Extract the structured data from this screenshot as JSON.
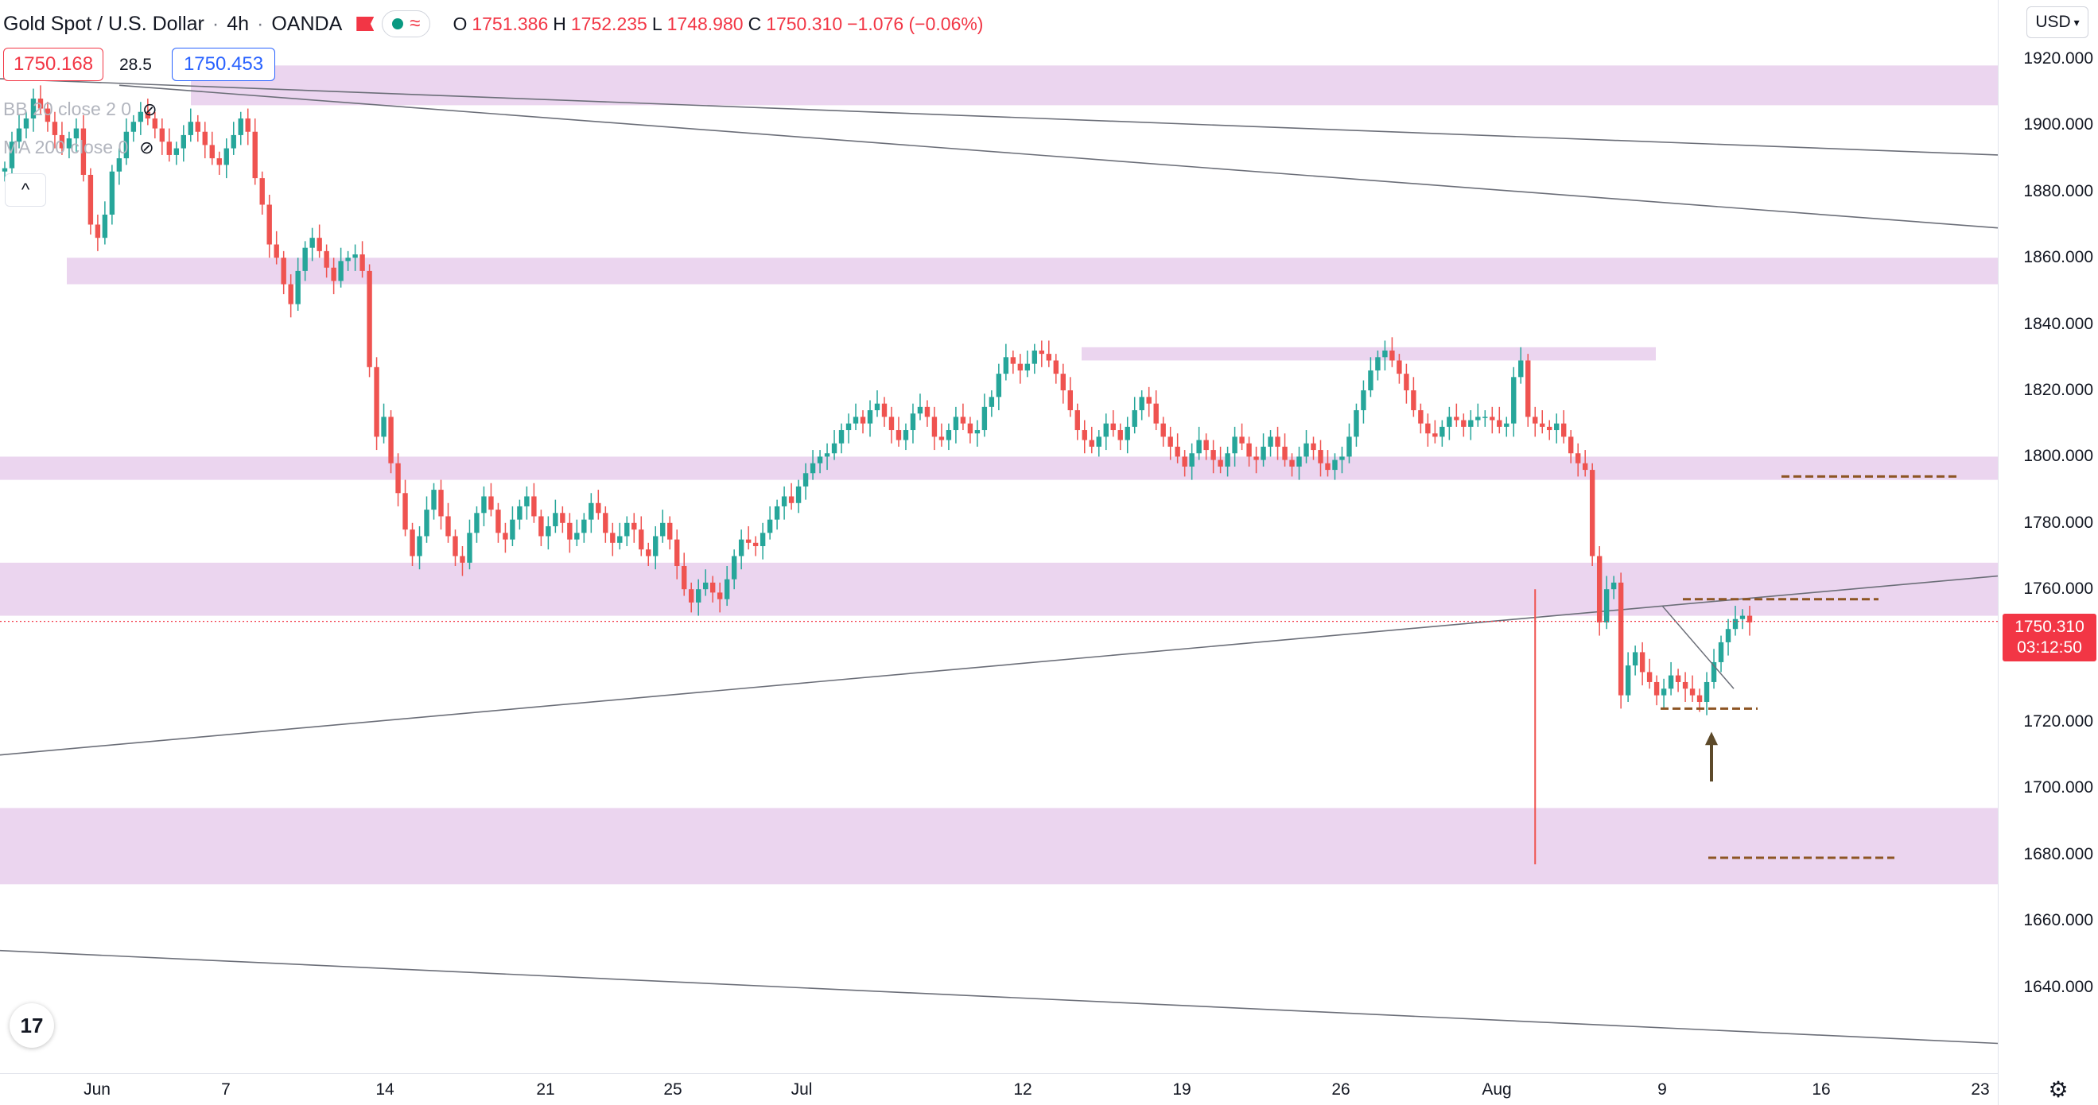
{
  "header": {
    "symbol": "Gold Spot / U.S. Dollar",
    "interval": "4h",
    "broker": "OANDA",
    "ohlc": [
      {
        "k": "O",
        "v": "1751.386"
      },
      {
        "k": "H",
        "v": "1752.235"
      },
      {
        "k": "L",
        "v": "1748.980"
      },
      {
        "k": "C",
        "v": "1750.310"
      }
    ],
    "change": "−1.076 (−0.06%)",
    "icons": [
      "flag-icon",
      "market-status-dot-icon",
      "waves-icon"
    ]
  },
  "trade": {
    "sell_price": "1750.168",
    "spread": "28.5",
    "buy_price": "1750.453"
  },
  "indicators": [
    {
      "label": "BB 20 close 2 0",
      "icon": "eye-hidden-icon"
    },
    {
      "label": "MA 200 close 0",
      "icon": "eye-hidden-icon"
    }
  ],
  "collapse_icon": "chevron-up-icon",
  "currency_button": "USD",
  "price_axis": {
    "labels": [
      "1920.000",
      "1900.000",
      "1880.000",
      "1860.000",
      "1840.000",
      "1820.000",
      "1800.000",
      "1780.000",
      "1760.000",
      "1740.000",
      "1720.000",
      "1700.000",
      "1680.000",
      "1660.000",
      "1640.000"
    ],
    "current_price": "1750.310",
    "countdown": "03:12:50"
  },
  "time_axis": {
    "labels": [
      "Jun",
      "7",
      "14",
      "21",
      "25",
      "Jul",
      "12",
      "19",
      "26",
      "Aug",
      "9",
      "16",
      "23"
    ]
  },
  "chart_data": {
    "type": "candlestick",
    "symbol": "XAUUSD",
    "y_range": [
      1625,
      1932
    ],
    "current_price": 1750.31,
    "zones": [
      {
        "low": 1906,
        "high": 1918
      },
      {
        "low": 1852,
        "high": 1860
      },
      {
        "low": 1829,
        "high": 1833
      },
      {
        "low": 1793,
        "high": 1800
      },
      {
        "low": 1752,
        "high": 1768
      },
      {
        "low": 1671,
        "high": 1694
      }
    ],
    "trendlines": [
      {
        "from": 1914,
        "to": 1891
      },
      {
        "from": 1912,
        "to": 1869
      },
      {
        "from": 1710,
        "to": 1764
      },
      {
        "from": 1651,
        "to": 1623
      }
    ],
    "dashed_levels": [
      1794,
      1757,
      1724,
      1679
    ],
    "closes": [
      1887,
      1895,
      1899,
      1902,
      1908,
      1905,
      1901,
      1897,
      1893,
      1896,
      1899,
      1885,
      1870,
      1866,
      1873,
      1886,
      1890,
      1898,
      1901,
      1904,
      1902,
      1899,
      1895,
      1891,
      1893,
      1897,
      1901,
      1898,
      1894,
      1890,
      1888,
      1893,
      1897,
      1902,
      1898,
      1884,
      1876,
      1864,
      1860,
      1852,
      1846,
      1856,
      1863,
      1866,
      1862,
      1857,
      1853,
      1859,
      1860,
      1861,
      1856,
      1827,
      1806,
      1812,
      1798,
      1789,
      1778,
      1770,
      1776,
      1784,
      1790,
      1782,
      1776,
      1770,
      1768,
      1777,
      1783,
      1788,
      1784,
      1777,
      1775,
      1781,
      1785,
      1788,
      1782,
      1776,
      1779,
      1783,
      1780,
      1775,
      1777,
      1781,
      1786,
      1783,
      1777,
      1774,
      1776,
      1780,
      1778,
      1772,
      1770,
      1776,
      1780,
      1775,
      1767,
      1760,
      1756,
      1760,
      1762,
      1759,
      1757,
      1763,
      1770,
      1775,
      1774,
      1773,
      1777,
      1781,
      1785,
      1788,
      1786,
      1791,
      1795,
      1798,
      1800,
      1801,
      1804,
      1808,
      1810,
      1812,
      1810,
      1814,
      1816,
      1812,
      1808,
      1805,
      1808,
      1813,
      1815,
      1812,
      1806,
      1805,
      1808,
      1812,
      1810,
      1807,
      1808,
      1815,
      1818,
      1825,
      1830,
      1828,
      1826,
      1828,
      1832,
      1831,
      1829,
      1825,
      1820,
      1814,
      1808,
      1805,
      1803,
      1806,
      1810,
      1808,
      1805,
      1809,
      1814,
      1818,
      1816,
      1810,
      1806,
      1803,
      1800,
      1797,
      1801,
      1805,
      1802,
      1799,
      1797,
      1801,
      1806,
      1804,
      1800,
      1799,
      1803,
      1806,
      1803,
      1799,
      1797,
      1800,
      1804,
      1802,
      1798,
      1796,
      1799,
      1800,
      1806,
      1814,
      1820,
      1826,
      1830,
      1832,
      1829,
      1825,
      1820,
      1814,
      1810,
      1807,
      1806,
      1809,
      1812,
      1811,
      1809,
      1811,
      1812,
      1812,
      1811,
      1809,
      1810,
      1824,
      1829,
      1812,
      1810,
      1809,
      1808,
      1810,
      1806,
      1801,
      1798,
      1796,
      1770,
      1750,
      1760,
      1762,
      1728,
      1737,
      1741,
      1735,
      1732,
      1728,
      1730,
      1734,
      1732,
      1730,
      1728,
      1726,
      1732,
      1738,
      1744,
      1748,
      1751,
      1752,
      1750
    ]
  }
}
